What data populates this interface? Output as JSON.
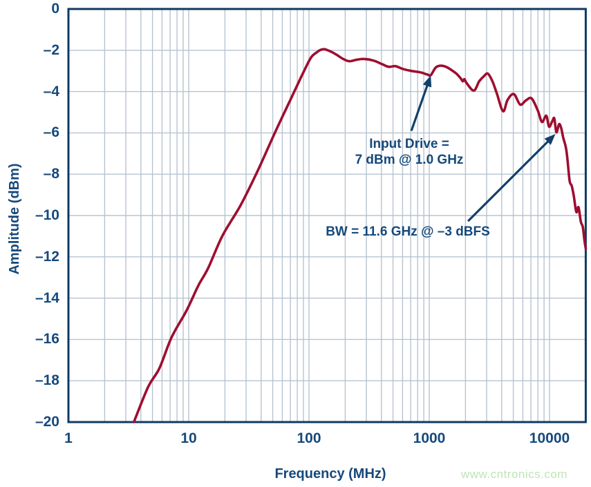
{
  "watermark": "www.cntronics.com",
  "chart_data": {
    "type": "line",
    "title": "",
    "xlabel": "Frequency (MHz)",
    "ylabel": "Amplitude (dBm)",
    "x_scale": "log",
    "xlim": [
      1,
      20000
    ],
    "ylim": [
      -20,
      0
    ],
    "grid": "on",
    "legend": "none",
    "x_ticks": {
      "values": [
        1,
        10,
        100,
        1000,
        10000
      ],
      "labels": [
        "1",
        "10",
        "100",
        "1000",
        "10000"
      ]
    },
    "y_ticks": {
      "values": [
        0,
        -2,
        -4,
        -6,
        -8,
        -10,
        -12,
        -14,
        -16,
        -18,
        -20
      ],
      "labels": [
        "0",
        "–2",
        "–4",
        "–6",
        "–8",
        "–10",
        "–12",
        "–14",
        "–16",
        "–18",
        "–20"
      ]
    },
    "colors": {
      "curve": "#9e0e2f",
      "grid": "#b7c3d1",
      "axis_border": "#0e3a62",
      "text_navy": "#15497b",
      "arrow_navy": "#123f6a",
      "watermark_green": "#bfe4b6"
    },
    "series": [
      {
        "name": "amplitude-response",
        "color": "#9e0e2f",
        "points": [
          [
            3.5,
            -20
          ],
          [
            4.6,
            -18.3
          ],
          [
            5.7,
            -17.4
          ],
          [
            7.2,
            -15.9
          ],
          [
            9.6,
            -14.6
          ],
          [
            12,
            -13.4
          ],
          [
            14.5,
            -12.55
          ],
          [
            19,
            -11.0
          ],
          [
            27,
            -9.5
          ],
          [
            37,
            -7.9
          ],
          [
            52,
            -6.0
          ],
          [
            70,
            -4.4
          ],
          [
            91,
            -3.0
          ],
          [
            104,
            -2.35
          ],
          [
            116,
            -2.1
          ],
          [
            125,
            -1.98
          ],
          [
            135,
            -1.95
          ],
          [
            150,
            -2.05
          ],
          [
            168,
            -2.2
          ],
          [
            190,
            -2.4
          ],
          [
            216,
            -2.53
          ],
          [
            252,
            -2.45
          ],
          [
            290,
            -2.42
          ],
          [
            345,
            -2.5
          ],
          [
            405,
            -2.67
          ],
          [
            460,
            -2.8
          ],
          [
            525,
            -2.77
          ],
          [
            600,
            -2.9
          ],
          [
            710,
            -3.0
          ],
          [
            845,
            -3.07
          ],
          [
            960,
            -3.17
          ],
          [
            1030,
            -3.2
          ],
          [
            1150,
            -2.8
          ],
          [
            1350,
            -2.78
          ],
          [
            1640,
            -3.08
          ],
          [
            1820,
            -3.35
          ],
          [
            1900,
            -3.5
          ],
          [
            1960,
            -3.4
          ],
          [
            2050,
            -3.6
          ],
          [
            2350,
            -3.95
          ],
          [
            2600,
            -3.5
          ],
          [
            2850,
            -3.25
          ],
          [
            3070,
            -3.13
          ],
          [
            3350,
            -3.5
          ],
          [
            3650,
            -4.1
          ],
          [
            4110,
            -4.95
          ],
          [
            4480,
            -4.4
          ],
          [
            5050,
            -4.12
          ],
          [
            5700,
            -4.63
          ],
          [
            6350,
            -4.43
          ],
          [
            7100,
            -4.33
          ],
          [
            8000,
            -4.93
          ],
          [
            8650,
            -5.47
          ],
          [
            9400,
            -5.17
          ],
          [
            9900,
            -5.7
          ],
          [
            10550,
            -5.43
          ],
          [
            10950,
            -5.3
          ],
          [
            11400,
            -5.97
          ],
          [
            12000,
            -5.58
          ],
          [
            12500,
            -5.77
          ],
          [
            13000,
            -6.23
          ],
          [
            13500,
            -6.57
          ],
          [
            13800,
            -6.85
          ],
          [
            14100,
            -7.3
          ],
          [
            14700,
            -8.33
          ],
          [
            15300,
            -8.57
          ],
          [
            15900,
            -9.05
          ],
          [
            16700,
            -9.83
          ],
          [
            17400,
            -9.6
          ],
          [
            18200,
            -10.3
          ],
          [
            18900,
            -10.55
          ],
          [
            19500,
            -11.2
          ],
          [
            20000,
            -11.6
          ]
        ]
      }
    ],
    "annotations": {
      "input_drive": {
        "line1": "Input Drive =",
        "line2": "7 dBm @ 1.0 GHz",
        "arrow": {
          "from": [
            710,
            -5.9
          ],
          "to": [
            1030,
            -3.22
          ]
        }
      },
      "bandwidth": {
        "text": "BW = 11.6 GHz @ –3 dBFS",
        "arrow": {
          "from": [
            2100,
            -10.27
          ],
          "to": [
            11200,
            -6.05
          ]
        }
      }
    }
  }
}
